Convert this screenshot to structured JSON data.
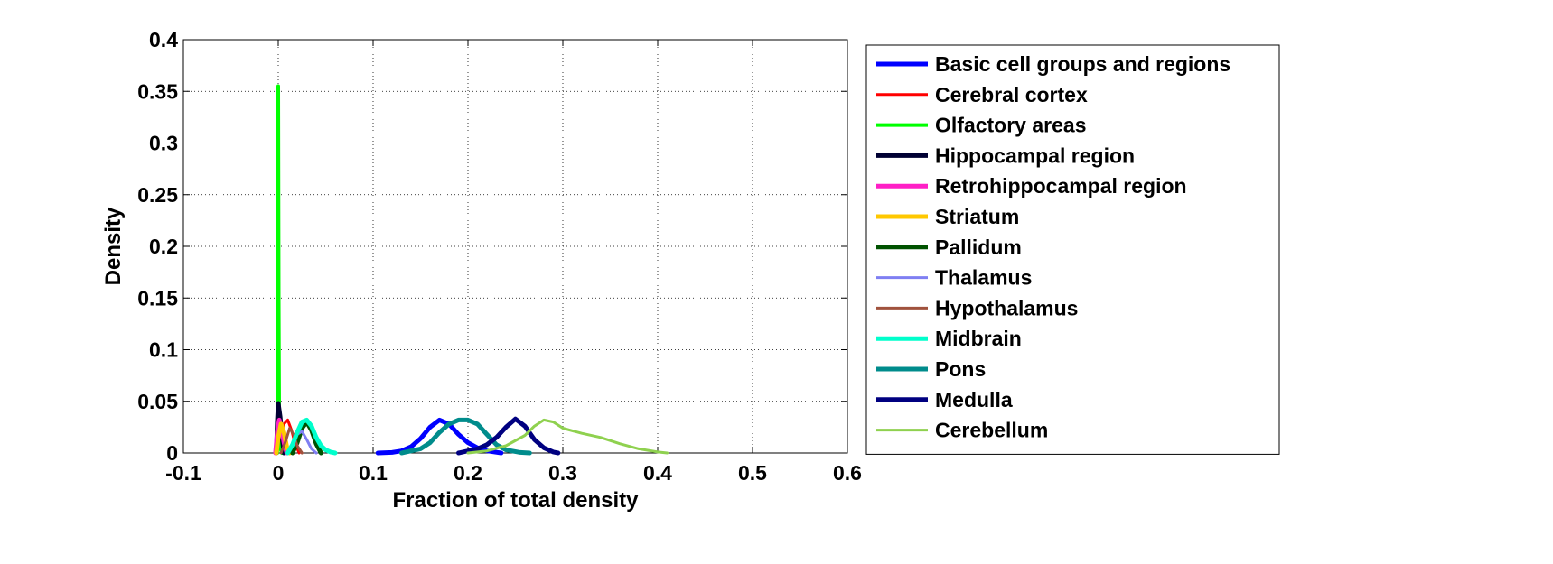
{
  "chart_data": {
    "type": "line",
    "title": "",
    "xlabel": "Fraction of total density",
    "ylabel": "Density",
    "xlim": [
      -0.1,
      0.6
    ],
    "ylim": [
      0,
      0.4
    ],
    "x_ticks": [
      -0.1,
      0,
      0.1,
      0.2,
      0.3,
      0.4,
      0.5,
      0.6
    ],
    "x_tick_labels": [
      "-0.1",
      "0",
      "0.1",
      "0.2",
      "0.3",
      "0.4",
      "0.5",
      "0.6"
    ],
    "y_ticks": [
      0,
      0.05,
      0.1,
      0.15,
      0.2,
      0.25,
      0.3,
      0.35,
      0.4
    ],
    "y_tick_labels": [
      "0",
      "0.05",
      "0.1",
      "0.15",
      "0.2",
      "0.25",
      "0.3",
      "0.35",
      "0.4"
    ],
    "grid": true,
    "legend_position": "outside-right",
    "series": [
      {
        "name": "Basic cell groups and regions",
        "color": "#0000ff",
        "width": 5,
        "points": [
          [
            0.105,
            0
          ],
          [
            0.12,
            0.0005
          ],
          [
            0.13,
            0.002
          ],
          [
            0.14,
            0.006
          ],
          [
            0.15,
            0.014
          ],
          [
            0.16,
            0.025
          ],
          [
            0.17,
            0.032
          ],
          [
            0.18,
            0.028
          ],
          [
            0.19,
            0.018
          ],
          [
            0.2,
            0.01
          ],
          [
            0.21,
            0.005
          ],
          [
            0.22,
            0.002
          ],
          [
            0.235,
            0
          ]
        ]
      },
      {
        "name": "Cerebral cortex",
        "color": "#ff0000",
        "width": 3,
        "points": [
          [
            -0.002,
            0
          ],
          [
            0.002,
            0.012
          ],
          [
            0.006,
            0.028
          ],
          [
            0.01,
            0.032
          ],
          [
            0.014,
            0.022
          ],
          [
            0.018,
            0.008
          ],
          [
            0.022,
            0
          ]
        ]
      },
      {
        "name": "Olfactory areas",
        "color": "#00ff00",
        "width": 4,
        "points": [
          [
            -0.001,
            0
          ],
          [
            -0.0005,
            0.15
          ],
          [
            0,
            0.355
          ],
          [
            0.0005,
            0.15
          ],
          [
            0.001,
            0.02
          ],
          [
            0.002,
            0.005
          ],
          [
            0.004,
            0
          ]
        ]
      },
      {
        "name": "Hippocampal region",
        "color": "#000033",
        "width": 5,
        "points": [
          [
            -0.002,
            0
          ],
          [
            -0.001,
            0.03
          ],
          [
            0,
            0.048
          ],
          [
            0.002,
            0.035
          ],
          [
            0.004,
            0.015
          ],
          [
            0.006,
            0
          ]
        ]
      },
      {
        "name": "Retrohippocampal region",
        "color": "#ff1fc6",
        "width": 5,
        "points": [
          [
            -0.003,
            0
          ],
          [
            -0.001,
            0.02
          ],
          [
            0.001,
            0.032
          ],
          [
            0.003,
            0.025
          ],
          [
            0.006,
            0.01
          ],
          [
            0.009,
            0
          ]
        ]
      },
      {
        "name": "Striatum",
        "color": "#ffc800",
        "width": 5,
        "points": [
          [
            -0.002,
            0
          ],
          [
            0,
            0.015
          ],
          [
            0.003,
            0.028
          ],
          [
            0.006,
            0.02
          ],
          [
            0.009,
            0.006
          ],
          [
            0.012,
            0
          ]
        ]
      },
      {
        "name": "Pallidum",
        "color": "#005200",
        "width": 5,
        "points": [
          [
            0.015,
            0
          ],
          [
            0.02,
            0.01
          ],
          [
            0.025,
            0.024
          ],
          [
            0.03,
            0.03
          ],
          [
            0.035,
            0.022
          ],
          [
            0.04,
            0.009
          ],
          [
            0.045,
            0
          ]
        ]
      },
      {
        "name": "Thalamus",
        "color": "#7f7ff2",
        "width": 3,
        "points": [
          [
            0.01,
            0
          ],
          [
            0.015,
            0.008
          ],
          [
            0.02,
            0.018
          ],
          [
            0.025,
            0.021
          ],
          [
            0.03,
            0.013
          ],
          [
            0.035,
            0.004
          ],
          [
            0.04,
            0
          ]
        ]
      },
      {
        "name": "Hypothalamus",
        "color": "#a0523d",
        "width": 3,
        "points": [
          [
            0.003,
            0
          ],
          [
            0.008,
            0.012
          ],
          [
            0.012,
            0.024
          ],
          [
            0.016,
            0.018
          ],
          [
            0.02,
            0.007
          ],
          [
            0.025,
            0
          ]
        ]
      },
      {
        "name": "Midbrain",
        "color": "#00ffcc",
        "width": 5,
        "points": [
          [
            0.01,
            0
          ],
          [
            0.015,
            0.008
          ],
          [
            0.02,
            0.02
          ],
          [
            0.025,
            0.03
          ],
          [
            0.03,
            0.032
          ],
          [
            0.035,
            0.026
          ],
          [
            0.04,
            0.015
          ],
          [
            0.045,
            0.007
          ],
          [
            0.05,
            0.003
          ],
          [
            0.055,
            0.001
          ],
          [
            0.06,
            0
          ]
        ]
      },
      {
        "name": "Pons",
        "color": "#008c8c",
        "width": 5,
        "points": [
          [
            0.13,
            0
          ],
          [
            0.15,
            0.004
          ],
          [
            0.16,
            0.01
          ],
          [
            0.17,
            0.02
          ],
          [
            0.18,
            0.028
          ],
          [
            0.19,
            0.032
          ],
          [
            0.2,
            0.032
          ],
          [
            0.21,
            0.028
          ],
          [
            0.22,
            0.018
          ],
          [
            0.23,
            0.008
          ],
          [
            0.24,
            0.003
          ],
          [
            0.255,
            0.0005
          ],
          [
            0.265,
            0
          ]
        ]
      },
      {
        "name": "Medulla",
        "color": "#000080",
        "width": 5,
        "points": [
          [
            0.19,
            0
          ],
          [
            0.2,
            0.002
          ],
          [
            0.21,
            0.004
          ],
          [
            0.22,
            0.008
          ],
          [
            0.23,
            0.015
          ],
          [
            0.24,
            0.025
          ],
          [
            0.25,
            0.033
          ],
          [
            0.26,
            0.026
          ],
          [
            0.27,
            0.013
          ],
          [
            0.28,
            0.005
          ],
          [
            0.29,
            0.001
          ],
          [
            0.295,
            0
          ]
        ]
      },
      {
        "name": "Cerebellum",
        "color": "#8fd14f",
        "width": 3,
        "points": [
          [
            0.2,
            0
          ],
          [
            0.22,
            0.002
          ],
          [
            0.24,
            0.007
          ],
          [
            0.26,
            0.017
          ],
          [
            0.27,
            0.026
          ],
          [
            0.28,
            0.032
          ],
          [
            0.29,
            0.03
          ],
          [
            0.3,
            0.024
          ],
          [
            0.32,
            0.019
          ],
          [
            0.34,
            0.015
          ],
          [
            0.36,
            0.009
          ],
          [
            0.38,
            0.004
          ],
          [
            0.4,
            0.001
          ],
          [
            0.41,
            0
          ]
        ]
      }
    ]
  }
}
